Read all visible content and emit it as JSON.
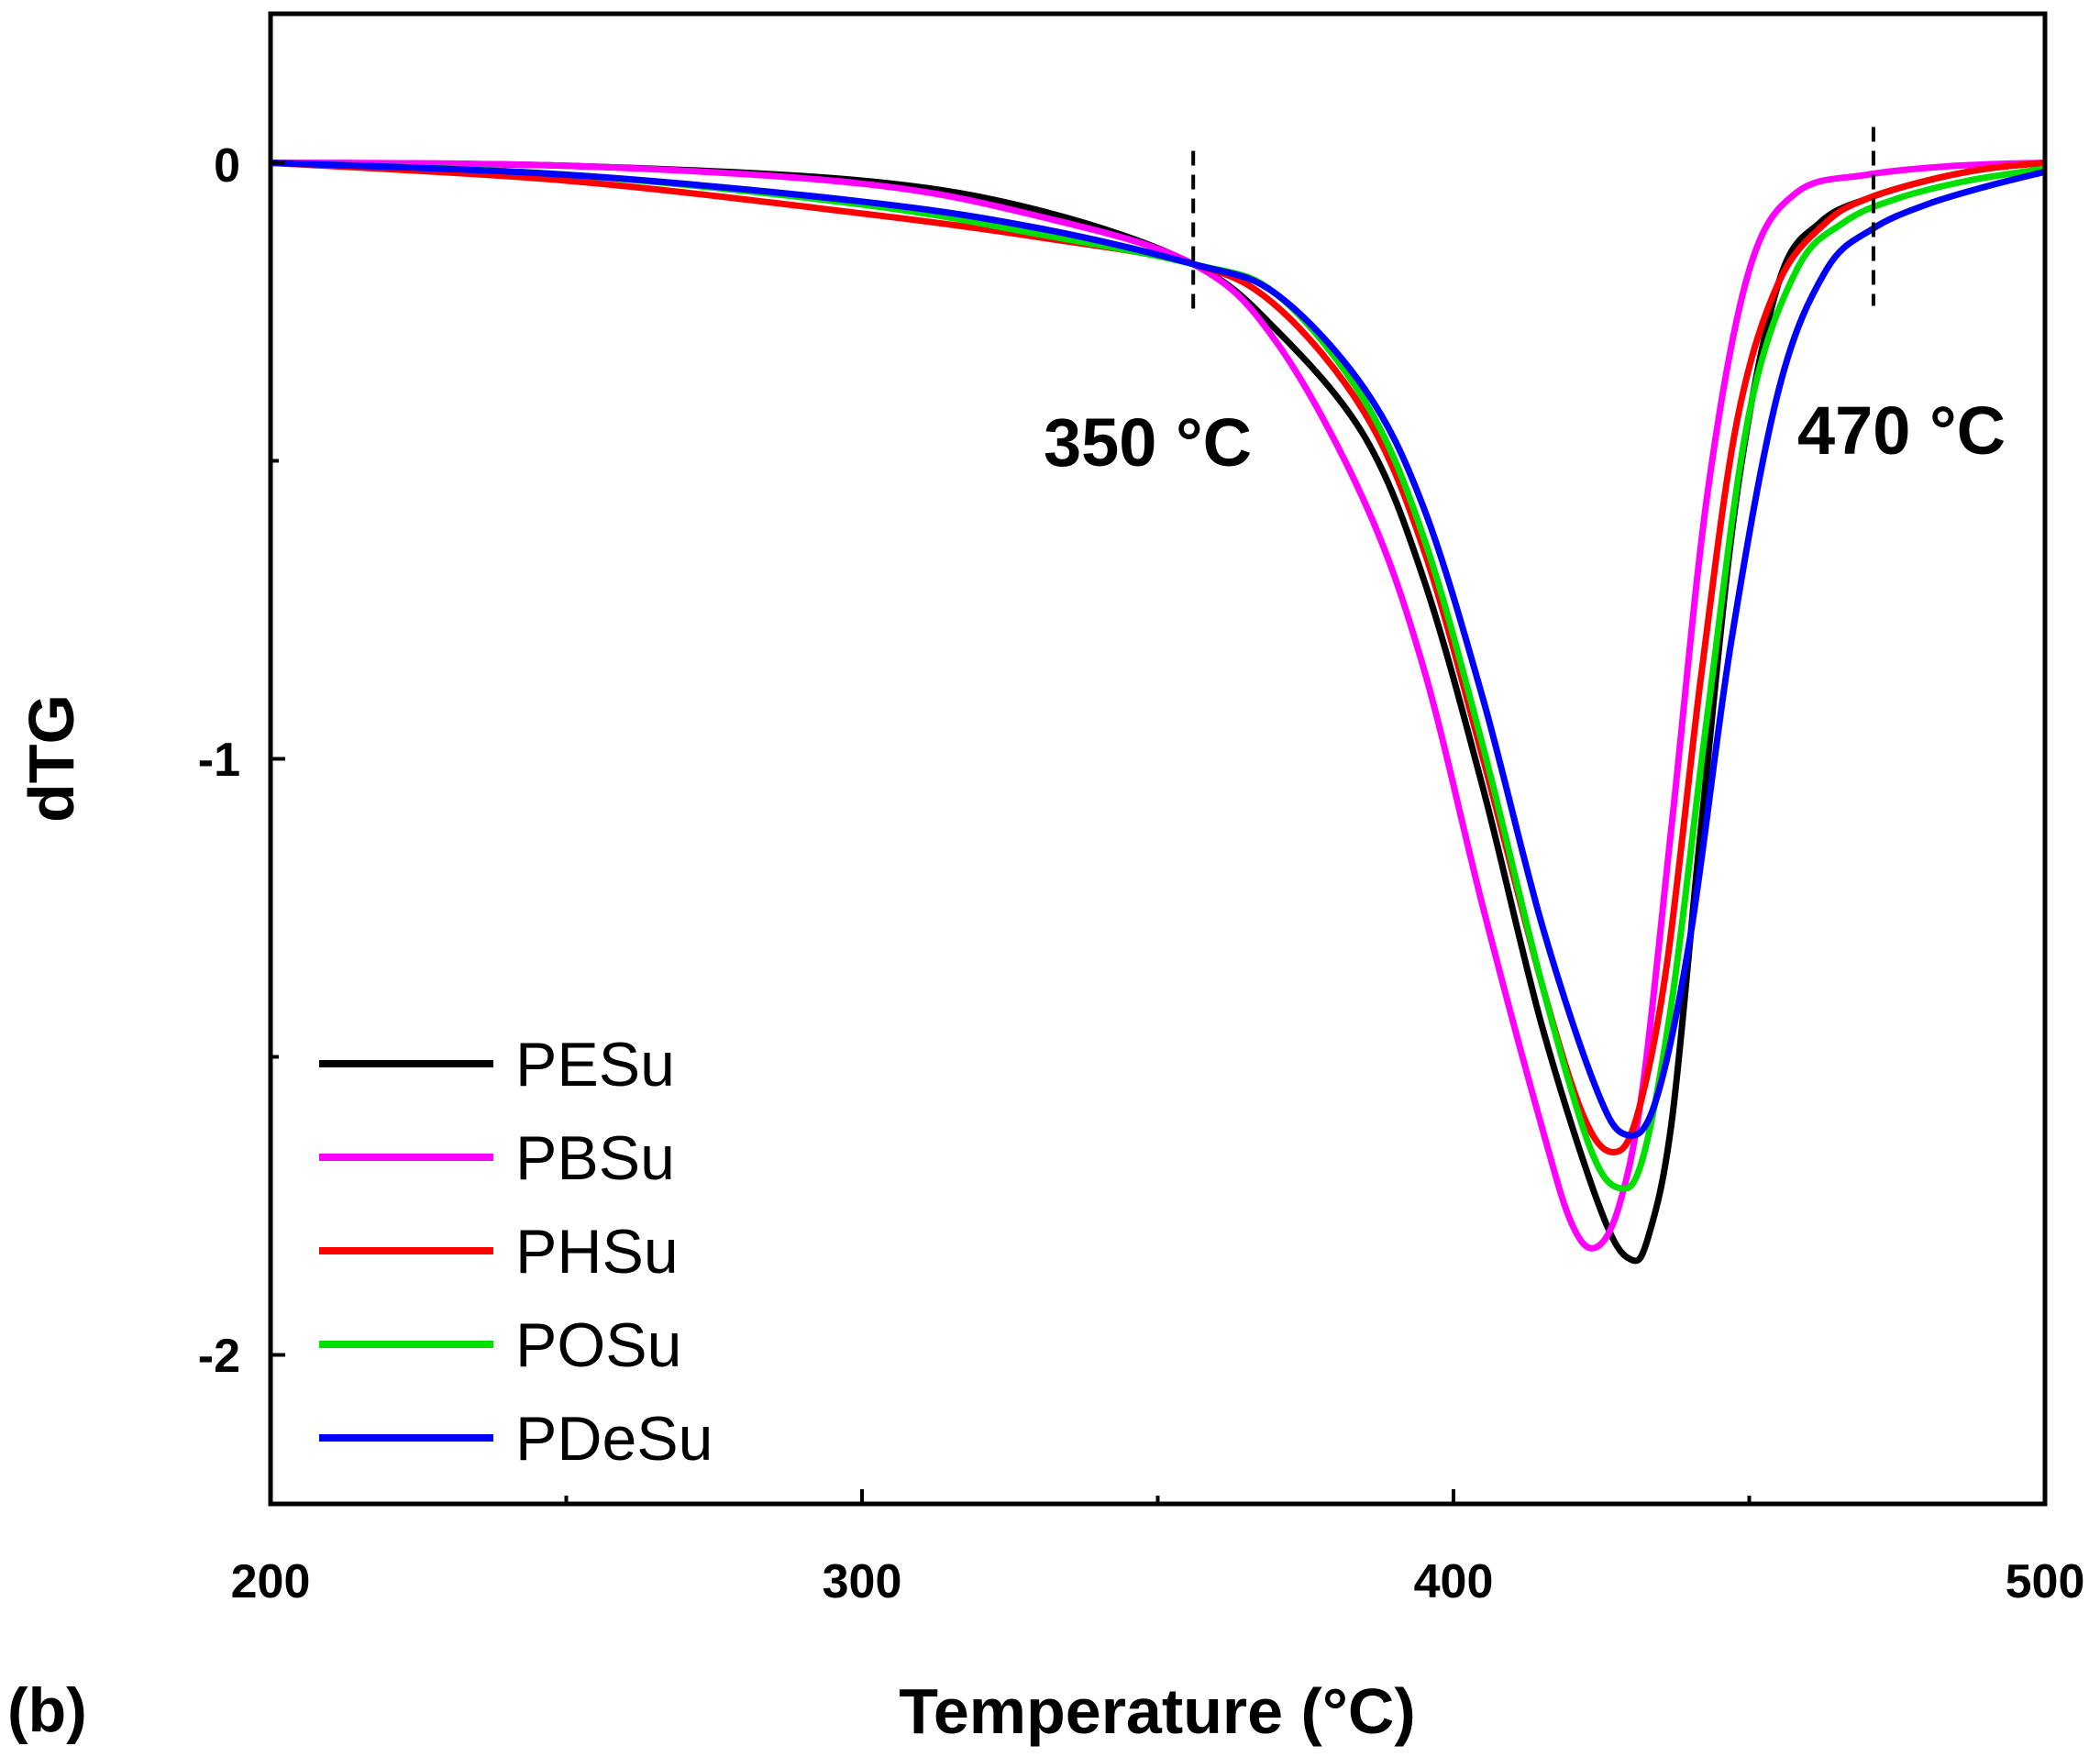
{
  "chart_data": {
    "type": "line",
    "panel_label": "(b)",
    "xlabel": "Temperature (°C)",
    "ylabel": "dTG",
    "xlim": [
      200,
      500
    ],
    "ylim": [
      -2.25,
      0.25
    ],
    "xticks": [
      200,
      300,
      400,
      500
    ],
    "xtick_labels": [
      "200",
      "300",
      "400",
      "500"
    ],
    "yticks": [
      0,
      -1,
      -2
    ],
    "ytick_labels": [
      "0",
      "-1",
      "-2"
    ],
    "legend_position": "bottom-left",
    "annotations": [
      {
        "text": "350 °C",
        "x": 356
      },
      {
        "text": "470 °C",
        "x": 471
      }
    ],
    "series": [
      {
        "name": "PESu",
        "color": "#000000",
        "points": [
          [
            200,
            0
          ],
          [
            250,
            -0.005
          ],
          [
            300,
            -0.03
          ],
          [
            330,
            -0.08
          ],
          [
            356,
            -0.17
          ],
          [
            370,
            -0.28
          ],
          [
            385,
            -0.46
          ],
          [
            395,
            -0.7
          ],
          [
            405,
            -1.05
          ],
          [
            415,
            -1.45
          ],
          [
            425,
            -1.76
          ],
          [
            430,
            -1.84
          ],
          [
            433,
            -1.8
          ],
          [
            437,
            -1.6
          ],
          [
            442,
            -1.1
          ],
          [
            448,
            -0.55
          ],
          [
            455,
            -0.2
          ],
          [
            462,
            -0.1
          ],
          [
            470,
            -0.06
          ],
          [
            480,
            -0.03
          ],
          [
            490,
            -0.01
          ],
          [
            500,
            0
          ]
        ]
      },
      {
        "name": "PBSu",
        "color": "#ff00ff",
        "points": [
          [
            200,
            0
          ],
          [
            250,
            -0.005
          ],
          [
            300,
            -0.035
          ],
          [
            330,
            -0.09
          ],
          [
            356,
            -0.17
          ],
          [
            370,
            -0.3
          ],
          [
            385,
            -0.57
          ],
          [
            395,
            -0.85
          ],
          [
            405,
            -1.25
          ],
          [
            415,
            -1.62
          ],
          [
            420,
            -1.78
          ],
          [
            424,
            -1.82
          ],
          [
            428,
            -1.75
          ],
          [
            432,
            -1.55
          ],
          [
            437,
            -1.1
          ],
          [
            443,
            -0.55
          ],
          [
            450,
            -0.18
          ],
          [
            458,
            -0.05
          ],
          [
            470,
            -0.02
          ],
          [
            485,
            -0.005
          ],
          [
            500,
            0
          ]
        ]
      },
      {
        "name": "PHSu",
        "color": "#ff0000",
        "points": [
          [
            200,
            0
          ],
          [
            250,
            -0.03
          ],
          [
            300,
            -0.085
          ],
          [
            330,
            -0.125
          ],
          [
            356,
            -0.17
          ],
          [
            370,
            -0.24
          ],
          [
            385,
            -0.42
          ],
          [
            395,
            -0.65
          ],
          [
            405,
            -1.0
          ],
          [
            415,
            -1.38
          ],
          [
            422,
            -1.6
          ],
          [
            427,
            -1.66
          ],
          [
            431,
            -1.6
          ],
          [
            436,
            -1.35
          ],
          [
            442,
            -0.85
          ],
          [
            448,
            -0.43
          ],
          [
            455,
            -0.2
          ],
          [
            463,
            -0.1
          ],
          [
            470,
            -0.06
          ],
          [
            480,
            -0.03
          ],
          [
            490,
            -0.01
          ],
          [
            500,
            0
          ]
        ]
      },
      {
        "name": "POSu",
        "color": "#00e000",
        "points": [
          [
            200,
            0
          ],
          [
            250,
            -0.02
          ],
          [
            300,
            -0.07
          ],
          [
            330,
            -0.12
          ],
          [
            356,
            -0.17
          ],
          [
            370,
            -0.22
          ],
          [
            385,
            -0.4
          ],
          [
            395,
            -0.63
          ],
          [
            405,
            -0.98
          ],
          [
            415,
            -1.38
          ],
          [
            423,
            -1.65
          ],
          [
            428,
            -1.72
          ],
          [
            432,
            -1.67
          ],
          [
            437,
            -1.4
          ],
          [
            443,
            -0.92
          ],
          [
            450,
            -0.42
          ],
          [
            458,
            -0.18
          ],
          [
            466,
            -0.1
          ],
          [
            475,
            -0.06
          ],
          [
            487,
            -0.03
          ],
          [
            500,
            -0.01
          ]
        ]
      },
      {
        "name": "PDeSu",
        "color": "#0000ff",
        "points": [
          [
            200,
            0
          ],
          [
            250,
            -0.02
          ],
          [
            300,
            -0.065
          ],
          [
            330,
            -0.11
          ],
          [
            356,
            -0.17
          ],
          [
            370,
            -0.22
          ],
          [
            385,
            -0.38
          ],
          [
            395,
            -0.58
          ],
          [
            405,
            -0.9
          ],
          [
            415,
            -1.28
          ],
          [
            424,
            -1.55
          ],
          [
            429,
            -1.63
          ],
          [
            434,
            -1.58
          ],
          [
            440,
            -1.3
          ],
          [
            447,
            -0.8
          ],
          [
            455,
            -0.38
          ],
          [
            463,
            -0.18
          ],
          [
            471,
            -0.11
          ],
          [
            480,
            -0.07
          ],
          [
            490,
            -0.04
          ],
          [
            500,
            -0.015
          ]
        ]
      }
    ]
  }
}
